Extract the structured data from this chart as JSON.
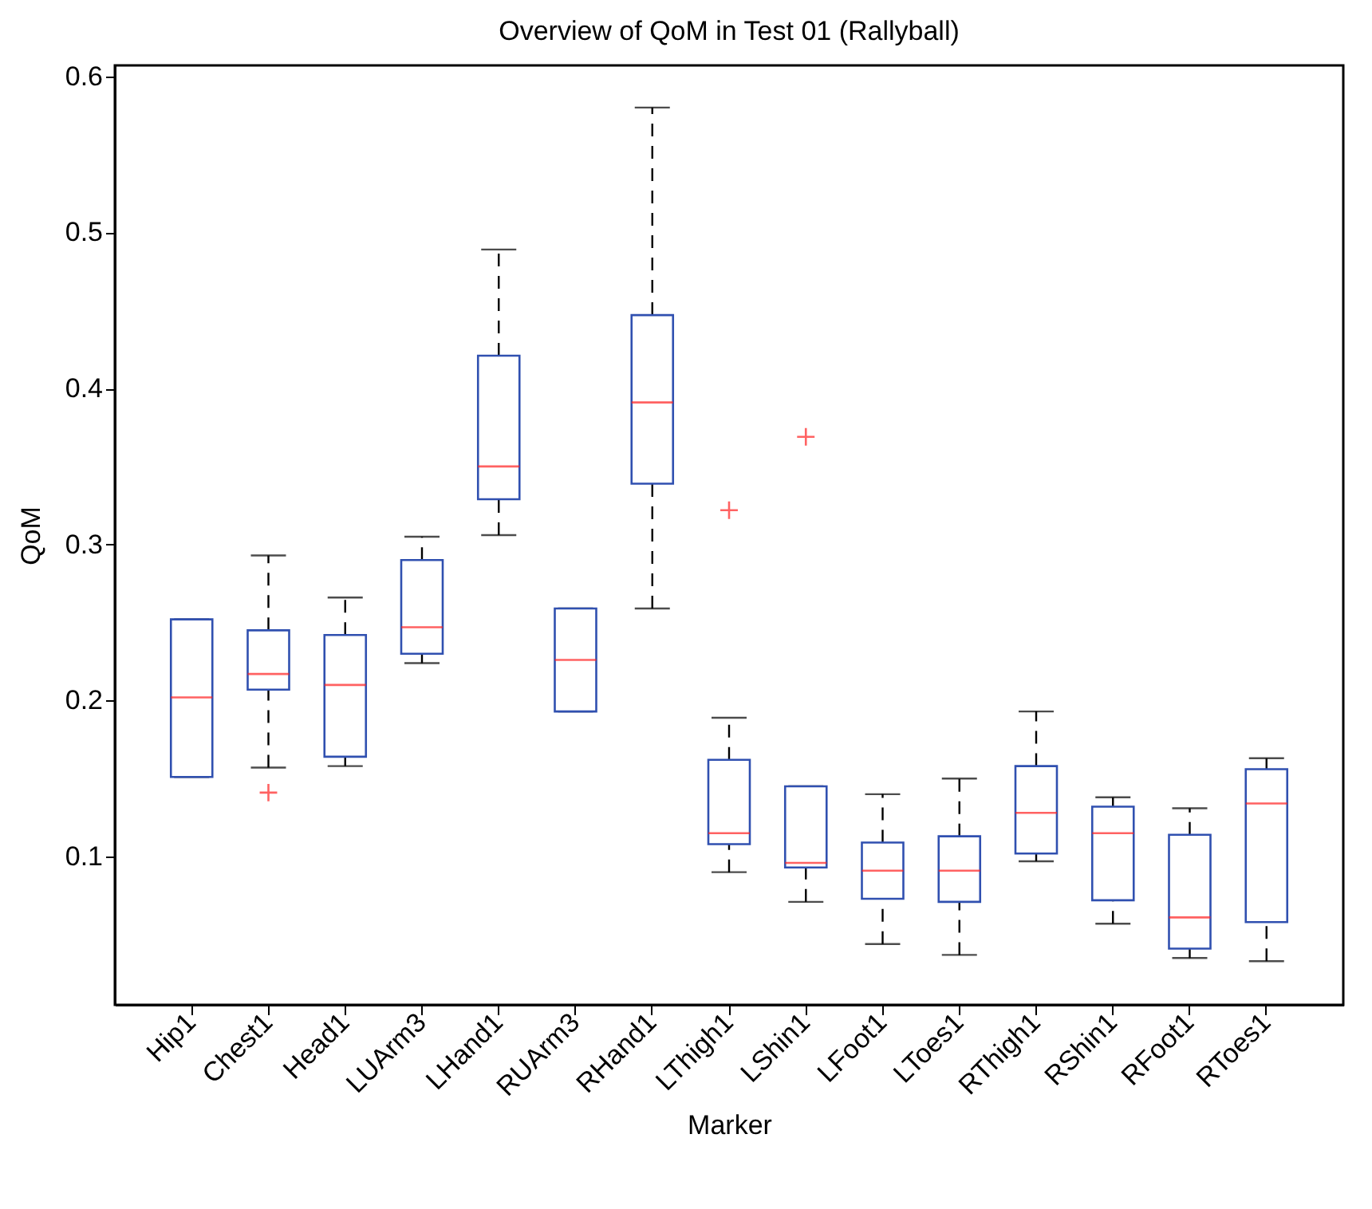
{
  "chart_data": {
    "type": "box",
    "title": "Overview of QoM in Test 01 (Rallyball)",
    "xlabel": "Marker",
    "ylabel": "QoM",
    "categories": [
      "Hip1",
      "Chest1",
      "Head1",
      "LUArm3",
      "LHand1",
      "RUArm3",
      "RHand1",
      "LThigh1",
      "LShin1",
      "LFoot1",
      "LToes1",
      "RThigh1",
      "RShin1",
      "RFoot1",
      "RToes1"
    ],
    "ylim": [
      0.005,
      0.607
    ],
    "yticks": [
      0.1,
      0.2,
      0.3,
      0.4,
      0.5,
      0.6
    ],
    "grid": false,
    "line_style": "dashed",
    "series": [
      {
        "color": "#3050b0",
        "boxes": [
          {
            "low": 0.151,
            "q1": 0.151,
            "median": 0.202,
            "q3": 0.252,
            "high": 0.252
          },
          {
            "low": 0.157,
            "q1": 0.207,
            "median": 0.217,
            "q3": 0.245,
            "high": 0.293,
            "outliers": [
              0.141
            ]
          },
          {
            "low": 0.158,
            "q1": 0.164,
            "median": 0.21,
            "q3": 0.242,
            "high": 0.266
          },
          {
            "low": 0.224,
            "q1": 0.23,
            "median": 0.247,
            "q3": 0.29,
            "high": 0.305
          },
          {
            "low": 0.306,
            "q1": 0.329,
            "median": 0.35,
            "q3": 0.421,
            "high": 0.489
          },
          {
            "low": 0.193,
            "q1": 0.193,
            "median": 0.226,
            "q3": 0.259,
            "high": 0.259
          },
          {
            "low": 0.259,
            "q1": 0.339,
            "median": 0.391,
            "q3": 0.447,
            "high": 0.58
          },
          {
            "low": 0.09,
            "q1": 0.108,
            "median": 0.115,
            "q3": 0.162,
            "high": 0.189,
            "outliers": [
              0.322
            ]
          },
          {
            "low": 0.071,
            "q1": 0.093,
            "median": 0.096,
            "q3": 0.145,
            "high": 0.145,
            "outliers": [
              0.369
            ]
          },
          {
            "low": 0.044,
            "q1": 0.073,
            "median": 0.091,
            "q3": 0.109,
            "high": 0.14
          },
          {
            "low": 0.037,
            "q1": 0.071,
            "median": 0.091,
            "q3": 0.113,
            "high": 0.15
          },
          {
            "low": 0.097,
            "q1": 0.102,
            "median": 0.128,
            "q3": 0.158,
            "high": 0.193
          },
          {
            "low": 0.057,
            "q1": 0.072,
            "median": 0.115,
            "q3": 0.132,
            "high": 0.138
          },
          {
            "low": 0.035,
            "q1": 0.041,
            "median": 0.061,
            "q3": 0.114,
            "high": 0.131
          },
          {
            "low": 0.033,
            "q1": 0.058,
            "median": 0.134,
            "q3": 0.156,
            "high": 0.163
          }
        ]
      }
    ]
  }
}
